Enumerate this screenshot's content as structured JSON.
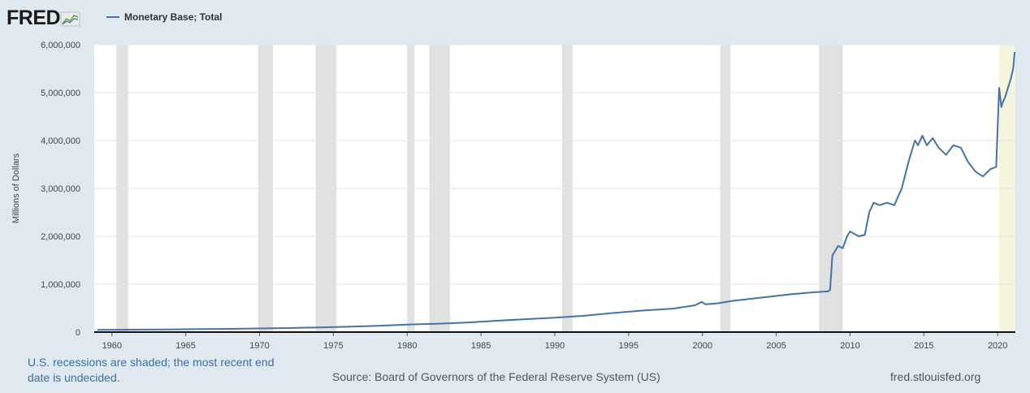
{
  "header": {
    "logo_text": "FRED",
    "logo_icon": "line-chart-icon",
    "legend_label": "Monetary Base; Total",
    "series_color": "#4572a7"
  },
  "footer": {
    "recession_note": "U.S. recessions are shaded; the most recent end date is undecided.",
    "source": "Source: Board of Governors of the Federal Reserve System (US)",
    "url": "fred.stlouisfed.org"
  },
  "chart_data": {
    "type": "line",
    "title": "",
    "xlabel": "",
    "ylabel": "Millions of Dollars",
    "xlim": [
      1958.8,
      2021.2
    ],
    "ylim": [
      0,
      6000000
    ],
    "x_ticks": [
      1960,
      1965,
      1970,
      1975,
      1980,
      1985,
      1990,
      1995,
      2000,
      2005,
      2010,
      2015,
      2020
    ],
    "y_ticks": [
      {
        "value": 0,
        "label": "0"
      },
      {
        "value": 1000000,
        "label": "1,000,000"
      },
      {
        "value": 2000000,
        "label": "2,000,000"
      },
      {
        "value": 3000000,
        "label": "3,000,000"
      },
      {
        "value": 4000000,
        "label": "4,000,000"
      },
      {
        "value": 5000000,
        "label": "5,000,000"
      },
      {
        "value": 6000000,
        "label": "6,000,000"
      }
    ],
    "grid": true,
    "legend_position": "top-left",
    "recessions": [
      [
        1960.3,
        1961.1
      ],
      [
        1969.9,
        1970.9
      ],
      [
        1973.8,
        1975.2
      ],
      [
        1980.0,
        1980.5
      ],
      [
        1981.5,
        1982.9
      ],
      [
        1990.5,
        1991.2
      ],
      [
        2001.2,
        2001.9
      ],
      [
        2007.9,
        2009.5
      ]
    ],
    "recession_undecided": [
      2020.1,
      2021.2
    ],
    "recession_color": "#e1e1e1",
    "undecided_color": "#f5f4dc",
    "series": [
      {
        "name": "Monetary Base; Total",
        "color": "#4572a7",
        "x": [
          1959.0,
          1960,
          1962,
          1964,
          1966,
          1968,
          1970,
          1972,
          1974,
          1976,
          1978,
          1980,
          1982,
          1984,
          1986,
          1988,
          1990,
          1992,
          1994,
          1996,
          1998,
          1999.5,
          1999.95,
          2000.2,
          2000.6,
          2001,
          2002,
          2004,
          2006,
          2007.5,
          2008.5,
          2008.65,
          2008.8,
          2009.0,
          2009.2,
          2009.5,
          2009.8,
          2010.0,
          2010.3,
          2010.6,
          2011.0,
          2011.3,
          2011.6,
          2012.0,
          2012.5,
          2013.0,
          2013.5,
          2014.0,
          2014.4,
          2014.6,
          2014.9,
          2015.2,
          2015.6,
          2016.0,
          2016.5,
          2017.0,
          2017.5,
          2018.0,
          2018.5,
          2019.0,
          2019.5,
          2019.9,
          2020.1,
          2020.25,
          2020.35,
          2020.5,
          2020.7,
          2020.9,
          2021.05,
          2021.15
        ],
        "y": [
          48000,
          50000,
          52000,
          56000,
          62000,
          68000,
          76000,
          84000,
          98000,
          112000,
          132000,
          158000,
          175000,
          200000,
          235000,
          270000,
          300000,
          340000,
          400000,
          450000,
          490000,
          560000,
          630000,
          580000,
          590000,
          600000,
          650000,
          720000,
          790000,
          830000,
          850000,
          880000,
          1600000,
          1700000,
          1800000,
          1750000,
          2000000,
          2100000,
          2050000,
          2000000,
          2030000,
          2500000,
          2700000,
          2650000,
          2700000,
          2650000,
          3000000,
          3600000,
          4000000,
          3900000,
          4100000,
          3900000,
          4050000,
          3850000,
          3700000,
          3900000,
          3850000,
          3550000,
          3350000,
          3250000,
          3400000,
          3450000,
          5100000,
          4700000,
          4800000,
          4900000,
          5100000,
          5300000,
          5500000,
          5850000
        ]
      }
    ]
  }
}
